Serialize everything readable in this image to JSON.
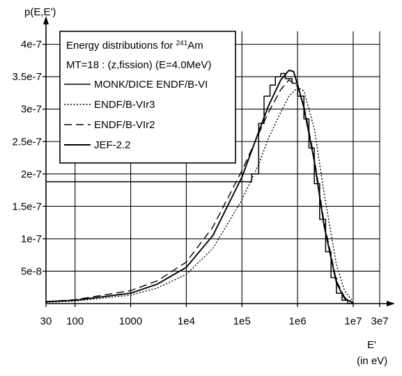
{
  "chart_data": {
    "type": "line",
    "title": "Energy distributions for 241Am",
    "title_parts": {
      "prefix": "Energy distributions for ",
      "mass_number": "241",
      "element": "Am"
    },
    "subtitle": "MT=18 : (z,fission) (E=4.0MeV)",
    "ylabel": "p(E,E')",
    "xlabel": "E'",
    "xunit": "(in eV)",
    "xscale": "log",
    "xlim": [
      30,
      30000000
    ],
    "ylim": [
      0,
      4.2e-07
    ],
    "grid": true,
    "legend_position": "top-left",
    "x_ticks": [
      {
        "value": 30,
        "label": "30"
      },
      {
        "value": 100,
        "label": "100"
      },
      {
        "value": 1000,
        "label": "1000"
      },
      {
        "value": 10000,
        "label": "1e4"
      },
      {
        "value": 100000,
        "label": "1e5"
      },
      {
        "value": 1000000,
        "label": "1e6"
      },
      {
        "value": 10000000,
        "label": "1e7"
      },
      {
        "value": 30000000,
        "label": "3e7"
      }
    ],
    "y_ticks": [
      {
        "value": 5e-08,
        "label": "5e-8"
      },
      {
        "value": 1e-07,
        "label": "1e-7"
      },
      {
        "value": 1.5e-07,
        "label": "1.5e-7"
      },
      {
        "value": 2e-07,
        "label": "2e-7"
      },
      {
        "value": 2.5e-07,
        "label": "2.5e-7"
      },
      {
        "value": 3e-07,
        "label": "3e-7"
      },
      {
        "value": 3.5e-07,
        "label": "3.5e-7"
      },
      {
        "value": 4e-07,
        "label": "4e-7"
      }
    ],
    "series": [
      {
        "name": "MONK/DICE ENDF/B-VI",
        "style": "solid-step",
        "x": [
          30,
          150000,
          150000,
          200000,
          200000,
          250000,
          250000,
          320000,
          320000,
          400000,
          400000,
          500000,
          500000,
          600000,
          600000,
          800000,
          800000,
          1000000,
          1000000,
          1300000,
          1300000,
          1600000,
          1600000,
          2000000,
          2000000,
          2500000,
          2500000,
          3200000,
          3200000,
          4000000,
          4000000,
          5000000,
          5000000,
          6300000,
          6300000,
          8000000,
          8000000,
          10000000
        ],
        "values": [
          1.88e-07,
          1.88e-07,
          2e-07,
          2e-07,
          2.78e-07,
          2.78e-07,
          3.2e-07,
          3.2e-07,
          3.37e-07,
          3.37e-07,
          3.5e-07,
          3.5e-07,
          3.55e-07,
          3.55e-07,
          3.47e-07,
          3.47e-07,
          3.4e-07,
          3.4e-07,
          3.2e-07,
          3.2e-07,
          2.85e-07,
          2.85e-07,
          2.4e-07,
          2.4e-07,
          1.85e-07,
          1.85e-07,
          1.3e-07,
          1.3e-07,
          8e-08,
          8e-08,
          4e-08,
          4e-08,
          1.6e-08,
          1.6e-08,
          5e-09,
          5e-09,
          0,
          0
        ]
      },
      {
        "name": "ENDF/B-VIr3",
        "style": "dotted",
        "x": [
          30,
          100,
          1000,
          3000,
          10000,
          30000,
          100000,
          200000,
          300000,
          500000,
          700000,
          1000000,
          1300000,
          2000000,
          3000000,
          5000000,
          7000000,
          10000000
        ],
        "values": [
          2e-09,
          4e-09,
          1.3e-08,
          2.4e-08,
          4.5e-08,
          8.5e-08,
          1.6e-07,
          2.15e-07,
          2.55e-07,
          2.95e-07,
          3.2e-07,
          3.33e-07,
          3.28e-07,
          2.7e-07,
          1.7e-07,
          6e-08,
          2e-08,
          3e-09
        ]
      },
      {
        "name": "ENDF/B-VIr2",
        "style": "dashed",
        "x": [
          30,
          100,
          1000,
          3000,
          10000,
          30000,
          100000,
          200000,
          300000,
          500000,
          700000,
          1000000,
          1300000,
          2000000,
          3000000,
          5000000,
          7000000,
          10000000
        ],
        "values": [
          3e-09,
          6e-09,
          2e-08,
          3.5e-08,
          6.4e-08,
          1.18e-07,
          2.05e-07,
          2.62e-07,
          2.95e-07,
          3.3e-07,
          3.45e-07,
          3.35e-07,
          3.05e-07,
          2.25e-07,
          1.25e-07,
          3.5e-08,
          1e-08,
          1e-09
        ]
      },
      {
        "name": "JEF-2.2",
        "style": "solid",
        "x": [
          30,
          100,
          1000,
          3000,
          10000,
          30000,
          100000,
          200000,
          300000,
          500000,
          700000,
          850000,
          1000000,
          1300000,
          2000000,
          3000000,
          5000000,
          7000000,
          10000000
        ],
        "values": [
          3e-09,
          5e-09,
          1.6e-08,
          3e-08,
          5.6e-08,
          1.05e-07,
          1.95e-07,
          2.65e-07,
          3.05e-07,
          3.45e-07,
          3.6e-07,
          3.58e-07,
          3.38e-07,
          3.02e-07,
          2.2e-07,
          1.2e-07,
          3.2e-08,
          8e-09,
          1e-09
        ]
      }
    ]
  }
}
